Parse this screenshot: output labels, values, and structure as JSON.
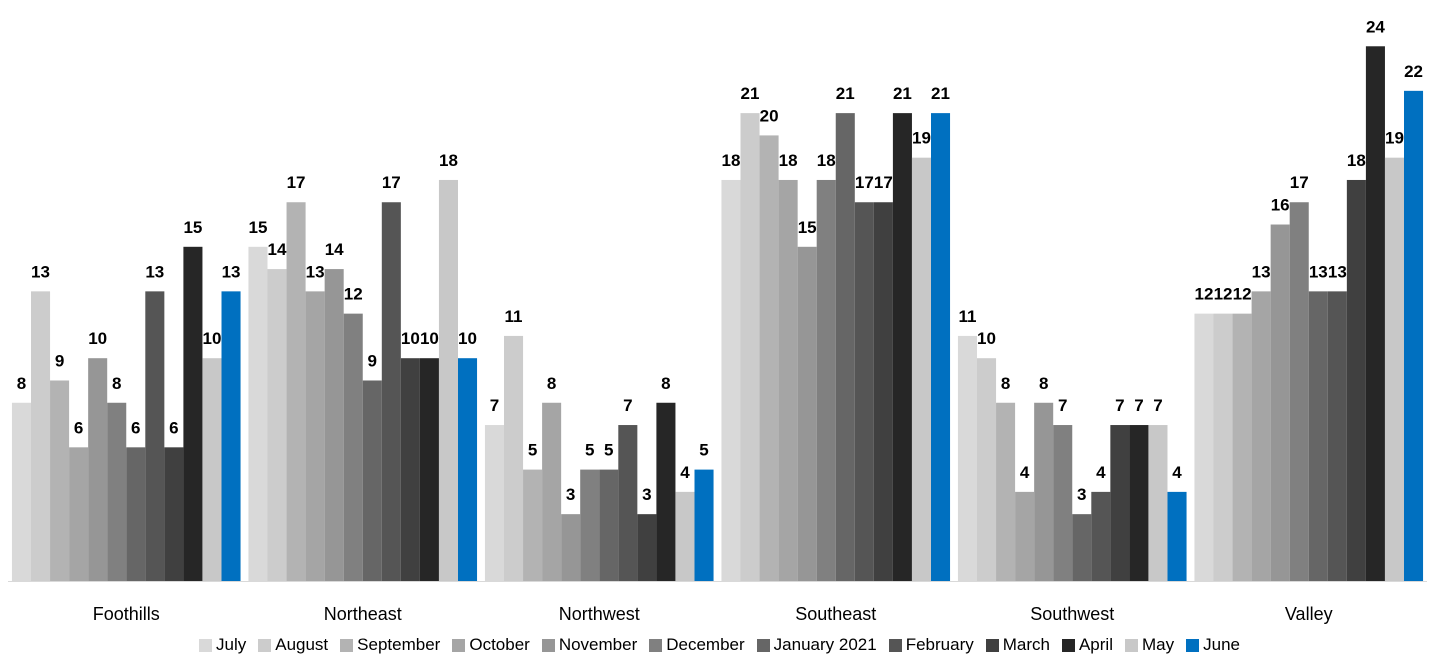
{
  "chart_data": {
    "type": "bar",
    "categories": [
      "Foothills",
      "Northeast",
      "Northwest",
      "Southeast",
      "Southwest",
      "Valley"
    ],
    "series": [
      {
        "name": "July",
        "color": "#d9d9d9",
        "values": [
          8,
          15,
          7,
          18,
          11,
          12
        ]
      },
      {
        "name": "August",
        "color": "#cccccc",
        "values": [
          13,
          14,
          11,
          21,
          10,
          12
        ]
      },
      {
        "name": "September",
        "color": "#b3b3b3",
        "values": [
          9,
          17,
          5,
          20,
          8,
          12
        ]
      },
      {
        "name": "October",
        "color": "#a5a5a5",
        "values": [
          6,
          13,
          8,
          18,
          4,
          13
        ]
      },
      {
        "name": "November",
        "color": "#969696",
        "values": [
          10,
          14,
          3,
          15,
          8,
          16
        ]
      },
      {
        "name": "December",
        "color": "#808080",
        "values": [
          8,
          12,
          5,
          18,
          7,
          17
        ]
      },
      {
        "name": "January 2021",
        "color": "#666666",
        "values": [
          6,
          9,
          5,
          21,
          3,
          13
        ]
      },
      {
        "name": "February",
        "color": "#555555",
        "values": [
          13,
          17,
          7,
          17,
          4,
          13
        ]
      },
      {
        "name": "March",
        "color": "#404040",
        "values": [
          6,
          10,
          3,
          17,
          7,
          18
        ]
      },
      {
        "name": "April",
        "color": "#262626",
        "values": [
          15,
          10,
          8,
          21,
          7,
          24
        ]
      },
      {
        "name": "May",
        "color": "#c8c8c8",
        "values": [
          10,
          18,
          4,
          19,
          7,
          19
        ]
      },
      {
        "name": "June",
        "color": "#0070c0",
        "values": [
          13,
          10,
          5,
          21,
          4,
          22
        ]
      }
    ],
    "ylim": [
      0,
      25
    ],
    "grid": false,
    "legend_position": "bottom",
    "data_labels": true
  }
}
